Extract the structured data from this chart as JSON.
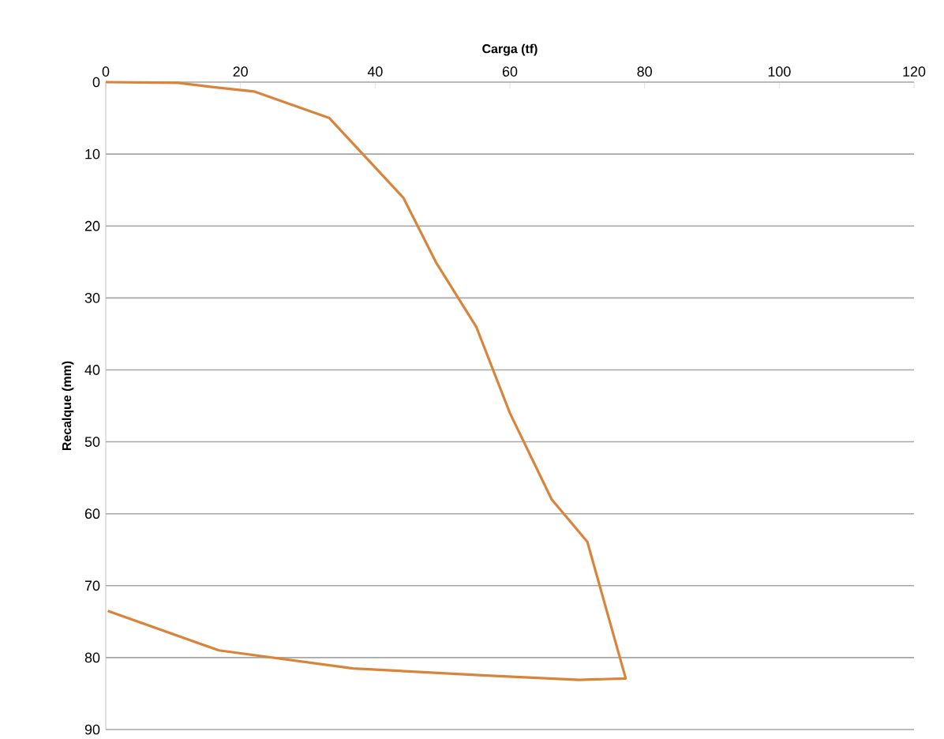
{
  "chart_data": {
    "type": "line",
    "xlabel": "Carga (tf)",
    "ylabel": "Recalque (mm)",
    "x": [
      0,
      10.7,
      16,
      22,
      33.2,
      44.2,
      49,
      55,
      60,
      66.2,
      71.5,
      77.2,
      70.3,
      56.6,
      36.7,
      16.8,
      0.3
    ],
    "series": [
      {
        "color": "#d9843b",
        "values": [
          0,
          0.1,
          0.7,
          1.3,
          5,
          16.1,
          25,
          34,
          46,
          58,
          63.9,
          82.9,
          83.1,
          82.5,
          81.5,
          79,
          73.5
        ]
      }
    ],
    "xlim": [
      0,
      120
    ],
    "xticks": [
      0,
      20,
      40,
      60,
      80,
      100,
      120
    ],
    "ylim": [
      90,
      0
    ],
    "yticks": [
      0,
      10,
      20,
      30,
      40,
      50,
      60,
      70,
      80,
      90
    ],
    "grid": "y",
    "marker": "none",
    "line_style": "solid"
  }
}
